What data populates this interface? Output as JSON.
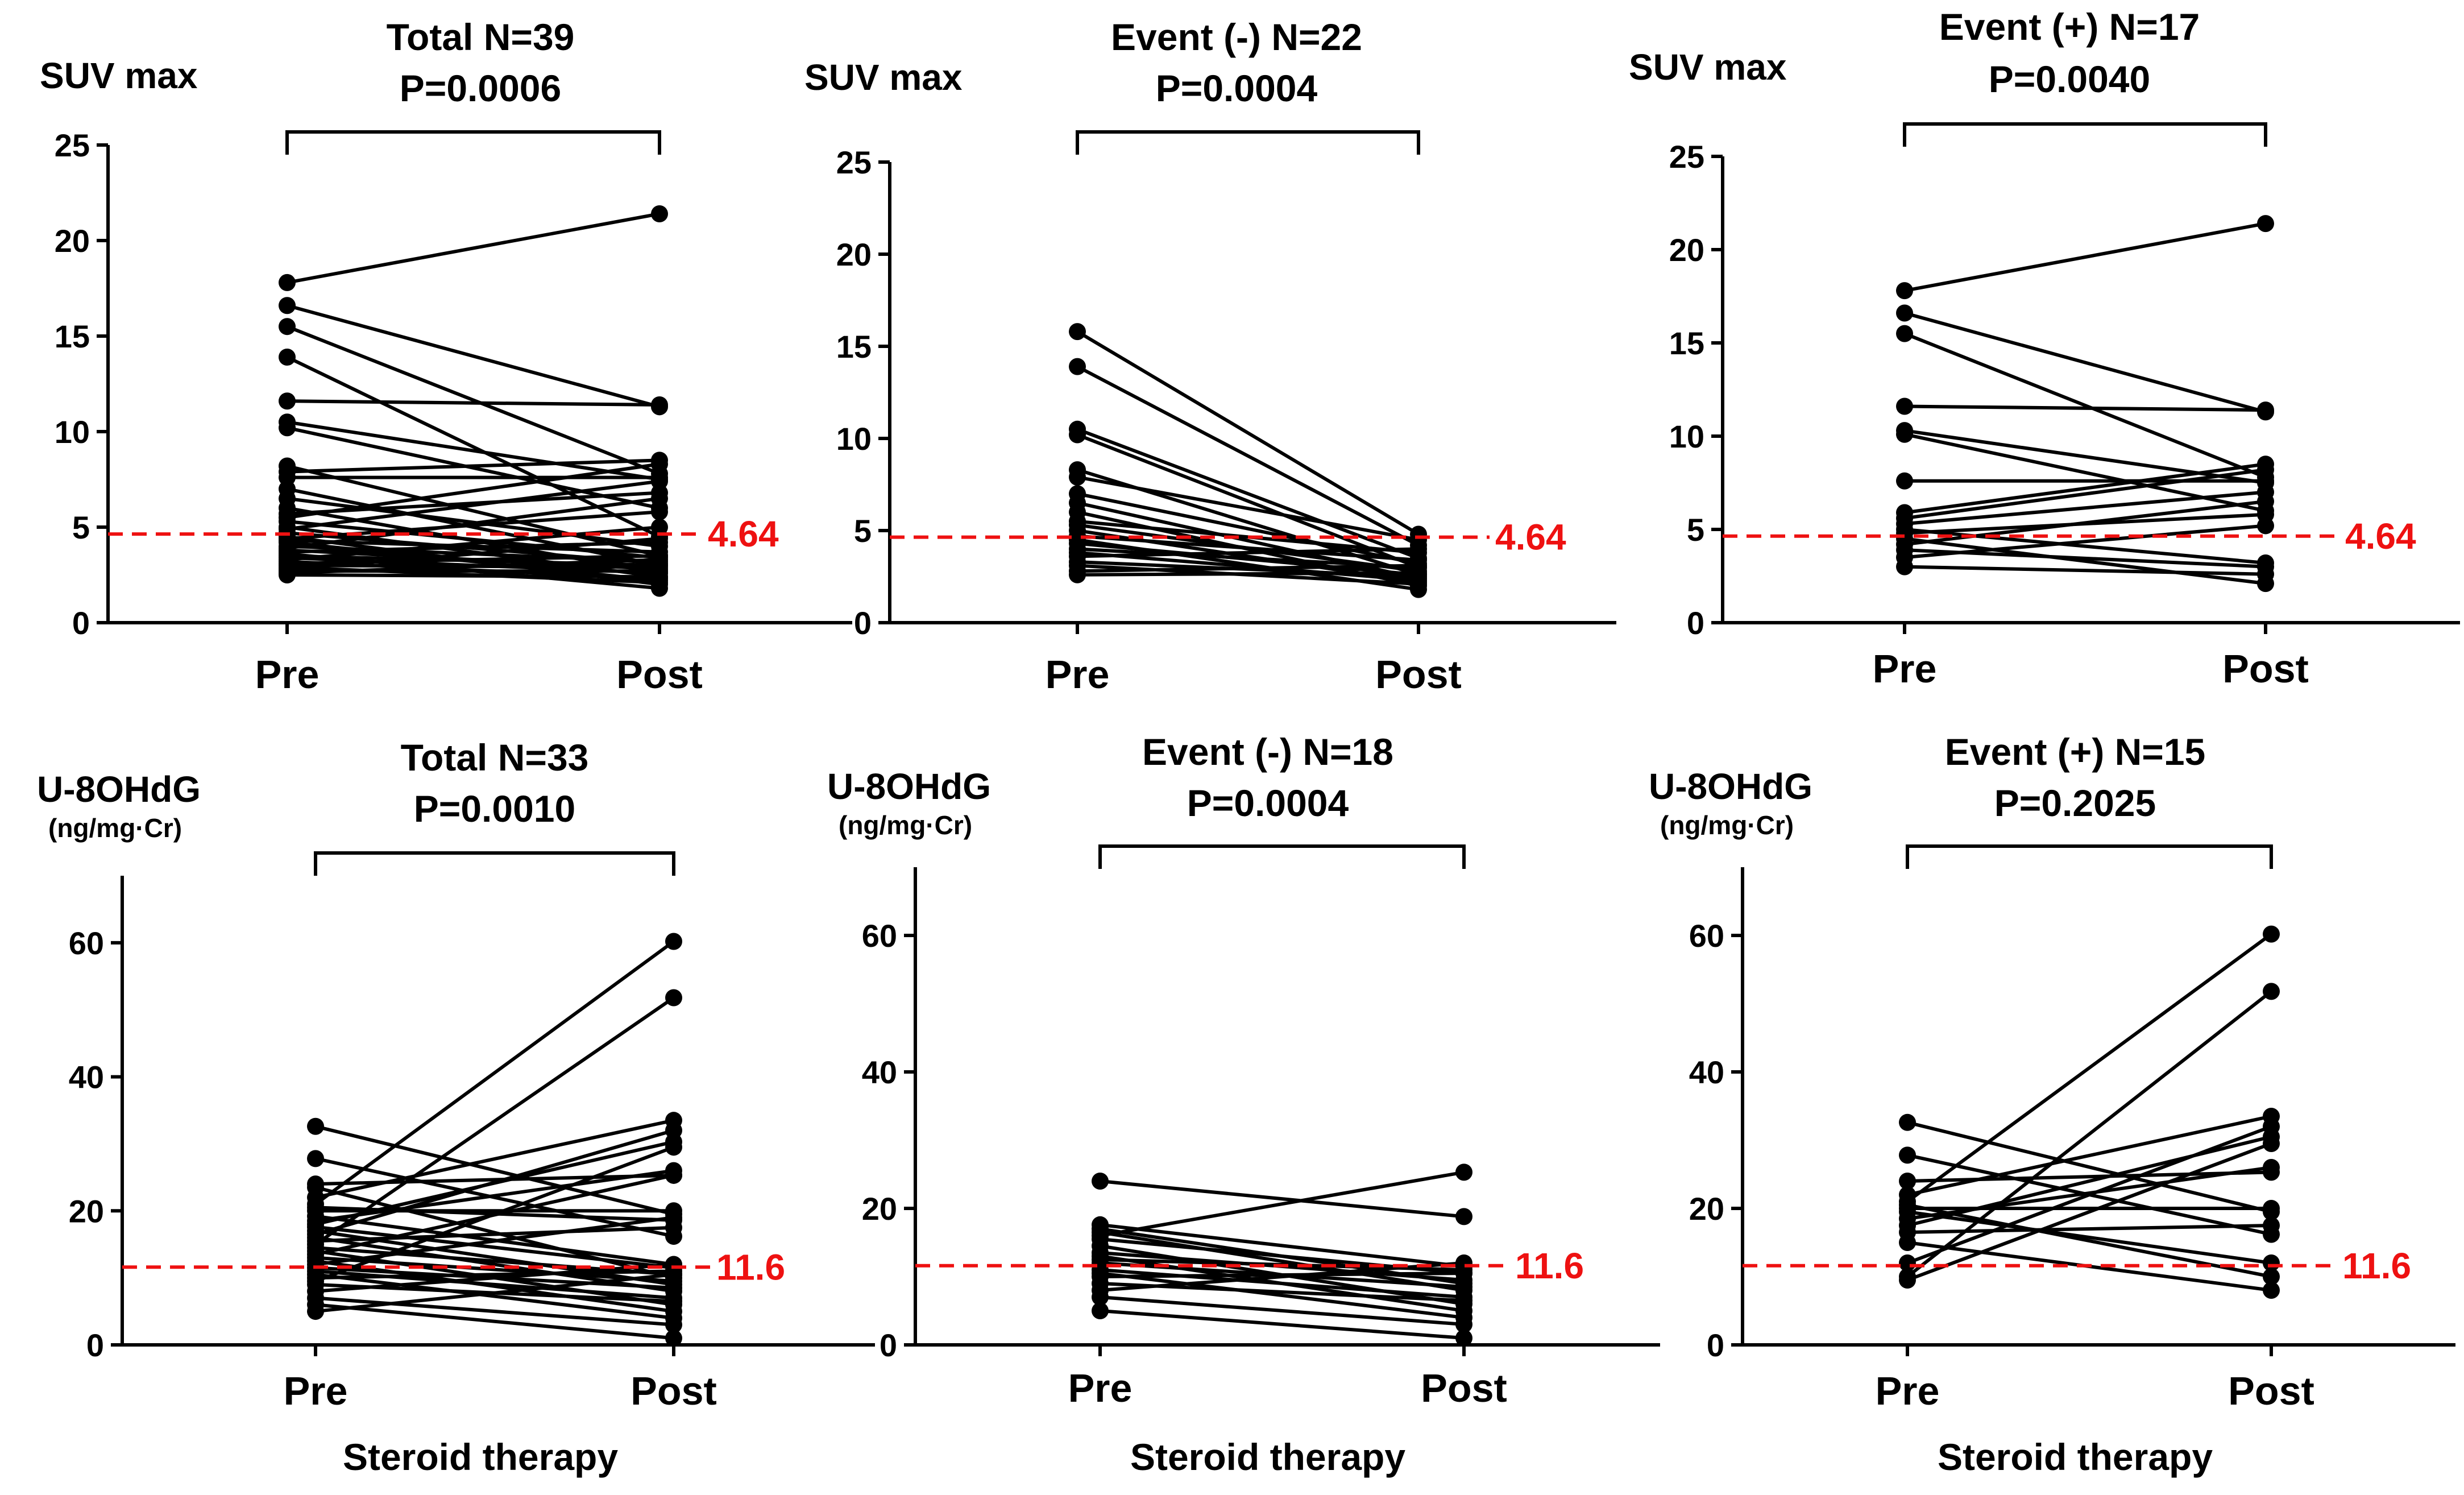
{
  "chart_data": [
    {
      "type": "line",
      "panel": "top-left",
      "ylabel": "SUV max",
      "yunit": "",
      "title_line1": "Total N=39",
      "title_line2": "P=0.0006",
      "categories": [
        "Pre",
        "Post"
      ],
      "ylim": [
        0,
        25
      ],
      "yticks": [
        0,
        5,
        10,
        15,
        20,
        25
      ],
      "threshold": 4.64,
      "threshold_label": "4.64",
      "xtitle": "",
      "pairs": [
        [
          17.8,
          21.4
        ],
        [
          16.6,
          11.3
        ],
        [
          15.5,
          7.8
        ],
        [
          13.9,
          4.5
        ],
        [
          11.6,
          11.4
        ],
        [
          10.5,
          7.5
        ],
        [
          10.2,
          6.0
        ],
        [
          8.2,
          3.5
        ],
        [
          7.9,
          8.5
        ],
        [
          7.6,
          7.6
        ],
        [
          7.0,
          3.0
        ],
        [
          6.5,
          4.0
        ],
        [
          6.0,
          2.6
        ],
        [
          5.7,
          6.8
        ],
        [
          5.5,
          8.3
        ],
        [
          5.3,
          3.4
        ],
        [
          5.0,
          2.4
        ],
        [
          4.9,
          7.4
        ],
        [
          4.7,
          3.1
        ],
        [
          4.5,
          2.0
        ],
        [
          4.4,
          5.8
        ],
        [
          4.3,
          3.7
        ],
        [
          4.2,
          2.2
        ],
        [
          4.0,
          3.2
        ],
        [
          3.9,
          6.5
        ],
        [
          3.8,
          2.8
        ],
        [
          3.7,
          4.2
        ],
        [
          3.6,
          1.8
        ],
        [
          3.5,
          3.0
        ],
        [
          3.4,
          2.6
        ],
        [
          3.3,
          5.0
        ],
        [
          3.2,
          2.3
        ],
        [
          3.1,
          3.5
        ],
        [
          3.0,
          2.9
        ],
        [
          2.9,
          2.1
        ],
        [
          2.8,
          4.4
        ],
        [
          2.7,
          2.7
        ],
        [
          2.6,
          3.3
        ],
        [
          2.5,
          2.4
        ]
      ]
    },
    {
      "type": "line",
      "panel": "top-middle",
      "ylabel": "SUV max",
      "yunit": "",
      "title_line1": "Event (-) N=22",
      "title_line2": "P=0.0004",
      "categories": [
        "Pre",
        "Post"
      ],
      "ylim": [
        0,
        25
      ],
      "yticks": [
        0,
        5,
        10,
        15,
        20,
        25
      ],
      "threshold": 4.64,
      "threshold_label": "4.64",
      "xtitle": "",
      "pairs": [
        [
          15.8,
          4.8
        ],
        [
          13.9,
          4.2
        ],
        [
          10.5,
          3.5
        ],
        [
          10.2,
          3.0
        ],
        [
          8.3,
          2.6
        ],
        [
          7.9,
          4.5
        ],
        [
          7.0,
          3.2
        ],
        [
          6.5,
          2.4
        ],
        [
          6.0,
          2.0
        ],
        [
          5.5,
          3.8
        ],
        [
          5.3,
          2.8
        ],
        [
          5.0,
          2.2
        ],
        [
          4.7,
          3.4
        ],
        [
          4.5,
          1.8
        ],
        [
          4.3,
          2.6
        ],
        [
          4.0,
          3.0
        ],
        [
          3.8,
          2.3
        ],
        [
          3.6,
          4.0
        ],
        [
          3.3,
          2.5
        ],
        [
          3.1,
          2.1
        ],
        [
          2.8,
          3.1
        ],
        [
          2.6,
          2.7
        ]
      ]
    },
    {
      "type": "line",
      "panel": "top-right",
      "ylabel": "SUV max",
      "yunit": "",
      "title_line1": "Event (+) N=17",
      "title_line2": "P=0.0040",
      "categories": [
        "Pre",
        "Post"
      ],
      "ylim": [
        0,
        25
      ],
      "yticks": [
        0,
        5,
        10,
        15,
        20,
        25
      ],
      "threshold": 4.64,
      "threshold_label": "4.64",
      "xtitle": "",
      "pairs": [
        [
          17.8,
          21.4
        ],
        [
          16.6,
          11.3
        ],
        [
          15.5,
          7.8
        ],
        [
          11.6,
          11.4
        ],
        [
          10.3,
          7.5
        ],
        [
          10.1,
          6.0
        ],
        [
          7.6,
          7.6
        ],
        [
          5.9,
          8.5
        ],
        [
          5.6,
          8.2
        ],
        [
          5.3,
          7.0
        ],
        [
          5.0,
          3.2
        ],
        [
          4.8,
          5.8
        ],
        [
          4.5,
          2.1
        ],
        [
          4.2,
          6.5
        ],
        [
          3.9,
          3.0
        ],
        [
          3.5,
          5.2
        ],
        [
          3.0,
          2.6
        ]
      ]
    },
    {
      "type": "line",
      "panel": "bottom-left",
      "ylabel": "U-8OHdG",
      "yunit": "(ng/mg·Cr)",
      "title_line1": "Total N=33",
      "title_line2": "P=0.0010",
      "categories": [
        "Pre",
        "Post"
      ],
      "ylim": [
        0,
        70
      ],
      "yticks": [
        0,
        20,
        40,
        60
      ],
      "threshold": 11.6,
      "threshold_label": "11.6",
      "xtitle": "Steroid therapy",
      "pairs": [
        [
          32.6,
          19.5
        ],
        [
          27.8,
          16.2
        ],
        [
          24.0,
          25.3
        ],
        [
          23.5,
          10.0
        ],
        [
          22.0,
          33.5
        ],
        [
          21.0,
          60.2
        ],
        [
          20.5,
          18.6
        ],
        [
          20.0,
          20.0
        ],
        [
          19.2,
          12.0
        ],
        [
          18.5,
          26.0
        ],
        [
          18.0,
          30.3
        ],
        [
          17.6,
          11.5
        ],
        [
          17.0,
          9.0
        ],
        [
          16.5,
          32.0
        ],
        [
          16.0,
          8.0
        ],
        [
          15.5,
          17.5
        ],
        [
          15.0,
          51.8
        ],
        [
          14.5,
          10.5
        ],
        [
          14.0,
          6.0
        ],
        [
          13.5,
          25.3
        ],
        [
          13.0,
          9.5
        ],
        [
          12.5,
          5.0
        ],
        [
          12.0,
          19.0
        ],
        [
          11.5,
          8.5
        ],
        [
          11.0,
          7.0
        ],
        [
          10.5,
          4.0
        ],
        [
          10.0,
          11.0
        ],
        [
          9.5,
          29.5
        ],
        [
          9.0,
          6.5
        ],
        [
          8.0,
          12.0
        ],
        [
          7.0,
          3.0
        ],
        [
          6.0,
          1.0
        ],
        [
          5.0,
          10.5
        ]
      ]
    },
    {
      "type": "line",
      "panel": "bottom-middle",
      "ylabel": "U-8OHdG",
      "yunit": "(ng/mg·Cr)",
      "title_line1": "Event (-) N=18",
      "title_line2": "P=0.0004",
      "categories": [
        "Pre",
        "Post"
      ],
      "ylim": [
        0,
        70
      ],
      "yticks": [
        0,
        20,
        40,
        60
      ],
      "threshold": 11.6,
      "threshold_label": "11.6",
      "xtitle": "Steroid therapy",
      "pairs": [
        [
          24.0,
          18.8
        ],
        [
          17.6,
          11.5
        ],
        [
          17.0,
          9.0
        ],
        [
          16.5,
          8.0
        ],
        [
          16.0,
          25.3
        ],
        [
          15.5,
          10.5
        ],
        [
          14.5,
          6.0
        ],
        [
          13.5,
          9.5
        ],
        [
          13.0,
          5.0
        ],
        [
          12.5,
          11.0
        ],
        [
          12.0,
          8.5
        ],
        [
          11.0,
          7.0
        ],
        [
          10.5,
          4.0
        ],
        [
          10.0,
          10.5
        ],
        [
          9.0,
          6.5
        ],
        [
          8.0,
          12.0
        ],
        [
          7.0,
          3.0
        ],
        [
          5.0,
          1.0
        ]
      ]
    },
    {
      "type": "line",
      "panel": "bottom-right",
      "ylabel": "U-8OHdG",
      "yunit": "(ng/mg·Cr)",
      "title_line1": "Event (+) N=15",
      "title_line2": "P=0.2025",
      "categories": [
        "Pre",
        "Post"
      ],
      "ylim": [
        0,
        70
      ],
      "yticks": [
        0,
        20,
        40,
        60
      ],
      "threshold": 11.6,
      "threshold_label": "11.6",
      "xtitle": "Steroid therapy",
      "pairs": [
        [
          32.6,
          19.5
        ],
        [
          27.8,
          16.2
        ],
        [
          24.0,
          25.3
        ],
        [
          22.0,
          33.5
        ],
        [
          21.0,
          60.2
        ],
        [
          20.5,
          10.0
        ],
        [
          20.0,
          20.0
        ],
        [
          19.5,
          12.0
        ],
        [
          18.5,
          26.0
        ],
        [
          17.5,
          30.5
        ],
        [
          16.5,
          17.5
        ],
        [
          15.0,
          8.0
        ],
        [
          12.0,
          32.0
        ],
        [
          10.0,
          51.8
        ],
        [
          9.5,
          29.5
        ]
      ]
    }
  ]
}
